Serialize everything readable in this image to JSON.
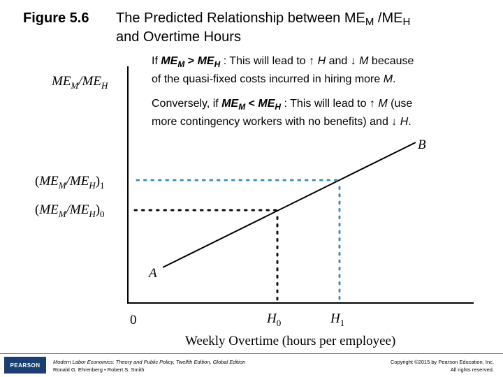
{
  "title": {
    "number": "Figure 5.6",
    "text_pre": "The Predicted Relationship between ME",
    "sub_m": "M",
    "slash": " /ME",
    "sub_h": "H",
    "line2": "and Overtime Hours"
  },
  "note1": {
    "lead": "If ",
    "me": "ME",
    "m": "M",
    "gt": " > ",
    "me2": "ME",
    "h": "H",
    "text": " : This will lead to ↑ ",
    "hvar": "H",
    "and": " and ↓ ",
    "mvar": "M",
    "because": " because",
    "line2": "of the quasi-fixed costs incurred in hiring more ",
    "mend": "M",
    "period": "."
  },
  "note2": {
    "lead": "Conversely, if ",
    "me": "ME",
    "m": "M",
    "lt": " < ",
    "me2": "ME",
    "h": "H",
    "text": " : This will lead to ↑ ",
    "mvar": "M",
    "use": " (use",
    "line2": "more contingency workers with no benefits) and ↓ ",
    "hvar": "H",
    "period": "."
  },
  "diagram": {
    "y_axis_label": "ME_M/ME_H",
    "y_tick_1": "(ME_M/ME_H)_1",
    "y_tick_0": "(ME_M/ME_H)_0",
    "origin": "0",
    "x_tick_0": "H_0",
    "x_tick_1": "H_1",
    "x_axis_label": "Weekly Overtime (hours per employee)",
    "point_a": "A",
    "point_b": "B"
  },
  "footer": {
    "logo": "PEARSON",
    "book": "Modern Labor Economics: Theory and Public Policy, Twelfth Edition, Global Edition",
    "authors": "Ronald G. Ehrenberg • Robert S. Smith",
    "copyright": "Copyright ©2015 by Pearson Education, Inc.",
    "rights": "All rights reserved."
  }
}
